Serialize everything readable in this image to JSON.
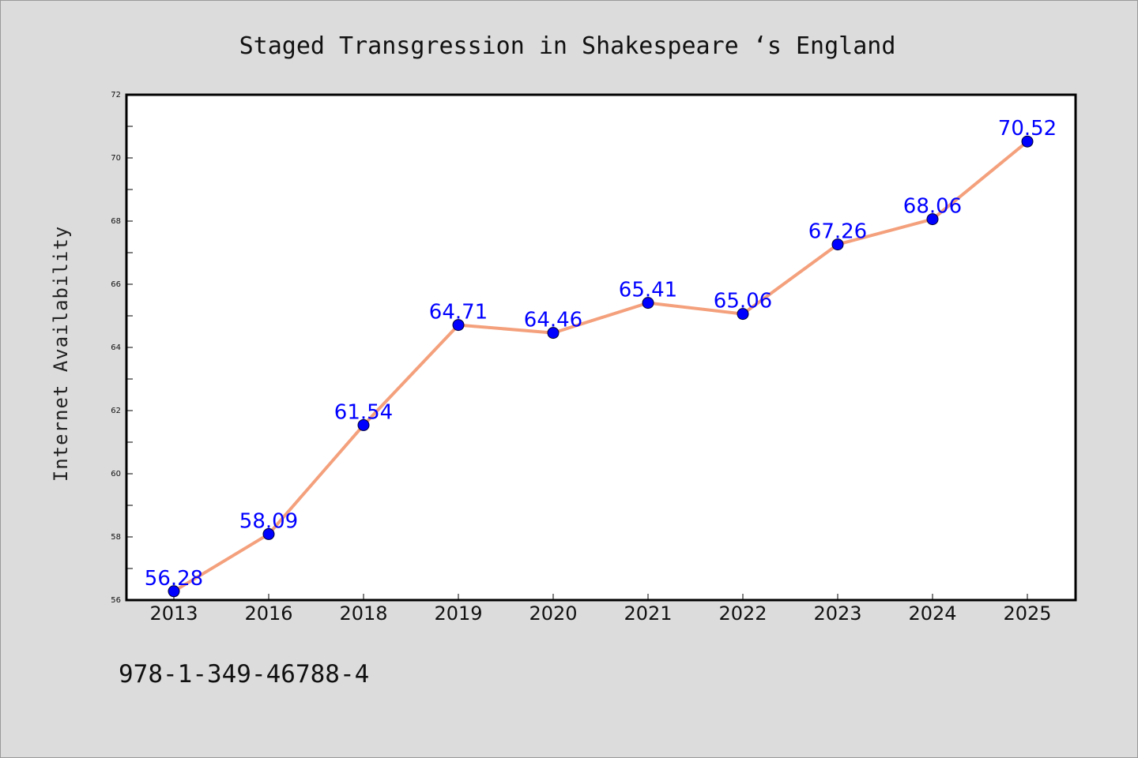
{
  "chart_data": {
    "type": "line",
    "title": "Staged Transgression in Shakespeare ‘s England",
    "xlabel": "",
    "ylabel": "Internet Availability",
    "categories": [
      "2013",
      "2016",
      "2018",
      "2019",
      "2020",
      "2021",
      "2022",
      "2023",
      "2024",
      "2025"
    ],
    "values": [
      56.28,
      58.09,
      61.54,
      64.71,
      64.46,
      65.41,
      65.06,
      67.26,
      68.06,
      70.52
    ],
    "data_labels": [
      "56.28",
      "58.09",
      "61.54",
      "64.71",
      "64.46",
      "65.41",
      "65.06",
      "67.26",
      "68.06",
      "70.52"
    ],
    "ylim": [
      56,
      72
    ],
    "yticks": [
      56,
      58,
      60,
      62,
      64,
      66,
      68,
      70,
      72
    ],
    "grid": false,
    "legend": "none",
    "line_color": "#f4a07c",
    "marker_color": "#0000ff",
    "label_color": "#0000ff",
    "background_color": "#dcdcdc",
    "plot_background": "#ffffff"
  },
  "footer": {
    "text": "978-1-349-46788-4"
  }
}
